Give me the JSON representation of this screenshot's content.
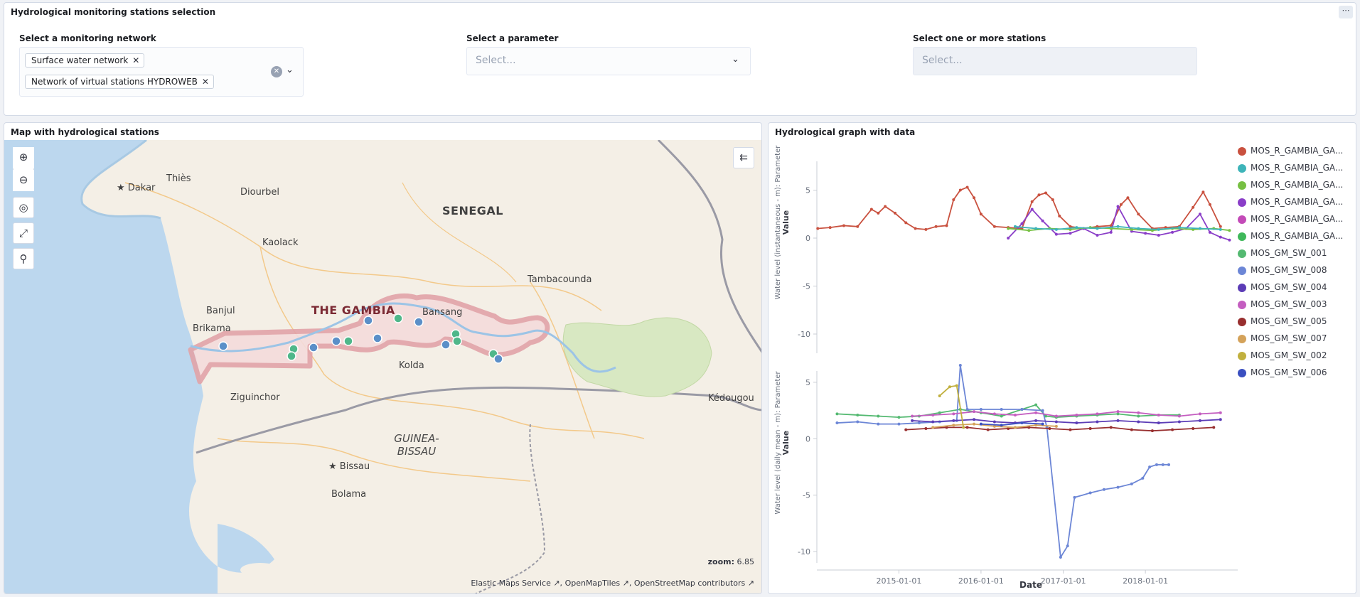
{
  "top": {
    "title": "Hydrological monitoring stations selection",
    "menu_icon": "ellipsis-icon",
    "network": {
      "label": "Select a monitoring network",
      "selected": [
        "Surface water network",
        "Network of virtual stations HYDROWEB"
      ]
    },
    "parameter": {
      "label": "Select a parameter",
      "placeholder": "Select..."
    },
    "stations": {
      "label": "Select one or more stations",
      "placeholder": "Select..."
    }
  },
  "map": {
    "title": "Map with hydrological stations",
    "zoom_label": "zoom:",
    "zoom_value": "6.85",
    "attribution": [
      "Elastic Maps Service",
      "OpenMapTiles",
      "OpenStreetMap contributors"
    ],
    "labels": {
      "dakar": "Dakar",
      "thies": "Thiès",
      "diourbel": "Diourbel",
      "senegal": "SENEGAL",
      "kaolack": "Kaolack",
      "tambacounda": "Tambacounda",
      "banjul": "Banjul",
      "the_gambia": "THE GAMBIA",
      "bansang": "Bansang",
      "brikama": "Brikama",
      "kolda": "Kolda",
      "ziguinchor": "Ziguinchor",
      "kedougou": "Kédougou",
      "guinea_bissau": "GUINEA-BISSAU",
      "bissau": "Bissau",
      "bolama": "Bolama"
    },
    "colors": {
      "water": "#bcd7ee",
      "land": "#f4efe6",
      "park": "#d8e8c2",
      "gambia": "#e2a3a8",
      "station_blue": "#5b8fc8",
      "station_green": "#4fb78a"
    }
  },
  "graph": {
    "title": "Hydrological graph with data",
    "ylabel_top": "Water level (instantaneous - m): Parameter",
    "ylabel_bottom": "Water level (daily mean - m): Parameter",
    "yvalue_label": "Value",
    "xlabel": "Date",
    "legend": [
      {
        "name": "MOS_R_GAMBIA_GA...",
        "color": "#c9513f"
      },
      {
        "name": "MOS_R_GAMBIA_GA...",
        "color": "#3eb4b9"
      },
      {
        "name": "MOS_R_GAMBIA_GA...",
        "color": "#77c043"
      },
      {
        "name": "MOS_R_GAMBIA_GA...",
        "color": "#8a3ec8"
      },
      {
        "name": "MOS_R_GAMBIA_GA...",
        "color": "#c34bb8"
      },
      {
        "name": "MOS_R_GAMBIA_GA...",
        "color": "#3fb85a"
      },
      {
        "name": "MOS_GM_SW_001",
        "color": "#54b971"
      },
      {
        "name": "MOS_GM_SW_008",
        "color": "#6c86d6"
      },
      {
        "name": "MOS_GM_SW_004",
        "color": "#5b3cb6"
      },
      {
        "name": "MOS_GM_SW_003",
        "color": "#c45ec0"
      },
      {
        "name": "MOS_GM_SW_005",
        "color": "#982f2f"
      },
      {
        "name": "MOS_GM_SW_007",
        "color": "#d4a25a"
      },
      {
        "name": "MOS_GM_SW_002",
        "color": "#c1b03e"
      },
      {
        "name": "MOS_GM_SW_006",
        "color": "#3a4fc0"
      }
    ]
  },
  "chart_data": [
    {
      "type": "line",
      "ylabel": "Water level (instantaneous - m): Parameter",
      "ylim": [
        -12,
        8
      ],
      "yticks": [
        5,
        0,
        -5,
        -10
      ],
      "xlim": [
        "2014-01-01",
        "2019-01-15"
      ],
      "series": [
        {
          "color": "#c9513f",
          "x": [
            "2014-01-05",
            "2014-03-01",
            "2014-05-01",
            "2014-07-01",
            "2014-09-01",
            "2014-10-01",
            "2014-11-01",
            "2014-12-15",
            "2015-02-01",
            "2015-03-15",
            "2015-05-01",
            "2015-06-15",
            "2015-08-01",
            "2015-09-01",
            "2015-10-01",
            "2015-11-01",
            "2015-12-01",
            "2016-01-01",
            "2016-03-01",
            "2016-05-01",
            "2016-07-01",
            "2016-08-15",
            "2016-09-15",
            "2016-10-15",
            "2016-11-15",
            "2016-12-15",
            "2017-02-01",
            "2017-04-01",
            "2017-06-01",
            "2017-08-01",
            "2017-09-15",
            "2017-10-15",
            "2017-12-01",
            "2018-02-01",
            "2018-04-01",
            "2018-06-01",
            "2018-08-01",
            "2018-09-15",
            "2018-10-15",
            "2018-12-01"
          ],
          "y": [
            1.0,
            1.1,
            1.3,
            1.2,
            3.0,
            2.6,
            3.3,
            2.6,
            1.6,
            1.0,
            0.9,
            1.2,
            1.3,
            4.0,
            5.0,
            5.3,
            4.2,
            2.5,
            1.2,
            1.1,
            1.0,
            3.8,
            4.5,
            4.7,
            4.0,
            2.3,
            1.2,
            1.0,
            1.2,
            1.3,
            3.5,
            4.2,
            2.5,
            1.0,
            1.1,
            1.2,
            3.2,
            4.8,
            3.5,
            1.2
          ]
        },
        {
          "color": "#8a3ec8",
          "x": [
            "2016-05-01",
            "2016-07-01",
            "2016-08-15",
            "2016-10-01",
            "2016-12-01",
            "2017-02-01",
            "2017-04-01",
            "2017-06-01",
            "2017-08-01",
            "2017-09-01",
            "2017-11-01",
            "2018-01-01",
            "2018-03-01",
            "2018-05-01",
            "2018-07-01",
            "2018-09-01",
            "2018-10-15",
            "2018-12-01",
            "2019-01-10"
          ],
          "y": [
            0.0,
            1.5,
            3.0,
            1.8,
            0.4,
            0.5,
            1.0,
            0.3,
            0.6,
            3.3,
            0.7,
            0.5,
            0.3,
            0.6,
            1.0,
            2.5,
            0.6,
            0.1,
            -0.2
          ]
        },
        {
          "color": "#77c043",
          "x": [
            "2016-05-01",
            "2016-08-01",
            "2016-11-01",
            "2017-02-01",
            "2017-05-01",
            "2017-08-01",
            "2017-11-01",
            "2018-02-01",
            "2018-05-01",
            "2018-08-01",
            "2018-11-01",
            "2019-01-10"
          ],
          "y": [
            1.0,
            0.8,
            1.0,
            0.9,
            1.1,
            1.0,
            0.9,
            0.8,
            1.0,
            0.9,
            1.0,
            0.8
          ]
        },
        {
          "color": "#3eb4b9",
          "x": [
            "2016-06-01",
            "2016-09-01",
            "2016-12-01",
            "2017-03-01",
            "2017-06-01",
            "2017-09-01",
            "2017-12-01",
            "2018-03-01",
            "2018-06-01",
            "2018-09-01",
            "2018-12-01"
          ],
          "y": [
            1.2,
            1.0,
            0.9,
            1.1,
            1.0,
            1.2,
            1.0,
            0.9,
            1.1,
            1.0,
            0.9
          ]
        }
      ]
    },
    {
      "type": "line",
      "ylabel": "Water level (daily mean - m): Parameter",
      "xlabel": "Date",
      "ylim": [
        -11,
        6
      ],
      "yticks": [
        5,
        0,
        -5,
        -10
      ],
      "xticks": [
        "2015-01-01",
        "2016-01-01",
        "2017-01-01",
        "2018-01-01"
      ],
      "xlim": [
        "2014-01-01",
        "2019-01-15"
      ],
      "series": [
        {
          "color": "#54b971",
          "x": [
            "2014-04-01",
            "2014-07-01",
            "2014-10-01",
            "2015-01-01",
            "2015-04-01",
            "2015-07-01",
            "2015-10-01",
            "2016-01-01",
            "2016-04-01",
            "2016-07-01",
            "2016-09-01",
            "2016-10-15",
            "2016-12-01",
            "2017-03-01",
            "2017-06-01",
            "2017-09-01",
            "2017-12-01",
            "2018-03-01",
            "2018-06-01"
          ],
          "y": [
            2.2,
            2.1,
            2.0,
            1.9,
            2.0,
            2.3,
            2.6,
            2.3,
            2.0,
            2.6,
            3.0,
            2.0,
            1.9,
            2.0,
            2.1,
            2.2,
            2.0,
            2.1,
            2.1
          ]
        },
        {
          "color": "#6c86d6",
          "x": [
            "2014-04-01",
            "2014-07-01",
            "2014-10-01",
            "2015-01-01",
            "2015-04-01",
            "2015-07-01",
            "2015-09-15",
            "2015-10-01",
            "2015-11-01",
            "2016-01-01",
            "2016-04-01",
            "2016-07-01",
            "2016-10-01",
            "2016-10-20",
            "2016-12-20",
            "2017-01-20",
            "2017-02-20",
            "2017-05-01",
            "2017-07-01",
            "2017-09-01",
            "2017-11-01",
            "2017-12-20",
            "2018-01-20",
            "2018-02-20",
            "2018-03-20",
            "2018-04-15"
          ],
          "y": [
            1.4,
            1.5,
            1.3,
            1.3,
            1.4,
            1.5,
            1.6,
            6.5,
            2.6,
            2.6,
            2.6,
            2.6,
            2.5,
            1.0,
            -10.5,
            -9.5,
            -5.2,
            -4.8,
            -4.5,
            -4.3,
            -4.0,
            -3.5,
            -2.5,
            -2.3,
            -2.3,
            -2.3
          ]
        },
        {
          "color": "#5b3cb6",
          "x": [
            "2015-03-01",
            "2015-06-01",
            "2015-09-01",
            "2015-12-01",
            "2016-03-01",
            "2016-06-01",
            "2016-09-01",
            "2016-12-01",
            "2017-03-01",
            "2017-06-01",
            "2017-09-01",
            "2017-12-01",
            "2018-03-01",
            "2018-06-01",
            "2018-09-01",
            "2018-12-01"
          ],
          "y": [
            1.6,
            1.5,
            1.6,
            1.7,
            1.5,
            1.4,
            1.6,
            1.5,
            1.4,
            1.5,
            1.6,
            1.5,
            1.4,
            1.5,
            1.6,
            1.7
          ]
        },
        {
          "color": "#c45ec0",
          "x": [
            "2015-03-01",
            "2015-06-01",
            "2015-09-01",
            "2015-12-01",
            "2016-03-01",
            "2016-06-01",
            "2016-09-01",
            "2016-12-01",
            "2017-03-01",
            "2017-06-01",
            "2017-09-01",
            "2017-12-01",
            "2018-03-01",
            "2018-06-01",
            "2018-09-01",
            "2018-12-01"
          ],
          "y": [
            2.0,
            2.1,
            2.2,
            2.4,
            2.2,
            2.1,
            2.3,
            2.0,
            2.1,
            2.2,
            2.4,
            2.3,
            2.1,
            2.0,
            2.2,
            2.3
          ]
        },
        {
          "color": "#982f2f",
          "x": [
            "2015-02-01",
            "2015-05-01",
            "2015-08-01",
            "2015-11-01",
            "2016-02-01",
            "2016-05-01",
            "2016-08-01",
            "2016-11-01",
            "2017-02-01",
            "2017-05-01",
            "2017-08-01",
            "2017-11-01",
            "2018-02-01",
            "2018-05-01",
            "2018-08-01",
            "2018-11-01"
          ],
          "y": [
            0.8,
            0.9,
            1.0,
            1.0,
            0.8,
            0.9,
            1.0,
            0.9,
            0.8,
            0.9,
            1.0,
            0.8,
            0.7,
            0.8,
            0.9,
            1.0
          ]
        },
        {
          "color": "#d4a25a",
          "x": [
            "2015-06-01",
            "2015-09-01",
            "2015-12-01",
            "2016-03-01",
            "2016-06-01",
            "2016-09-01",
            "2016-12-01"
          ],
          "y": [
            1.0,
            1.2,
            1.3,
            1.1,
            1.0,
            1.2,
            1.1
          ]
        },
        {
          "color": "#c1b03e",
          "x": [
            "2015-07-01",
            "2015-08-15",
            "2015-09-15",
            "2015-10-15"
          ],
          "y": [
            3.8,
            4.6,
            4.7,
            1.0
          ]
        },
        {
          "color": "#3a4fc0",
          "x": [
            "2016-01-01",
            "2016-04-01",
            "2016-07-01",
            "2016-10-01"
          ],
          "y": [
            1.3,
            1.2,
            1.4,
            1.3
          ]
        }
      ]
    }
  ]
}
